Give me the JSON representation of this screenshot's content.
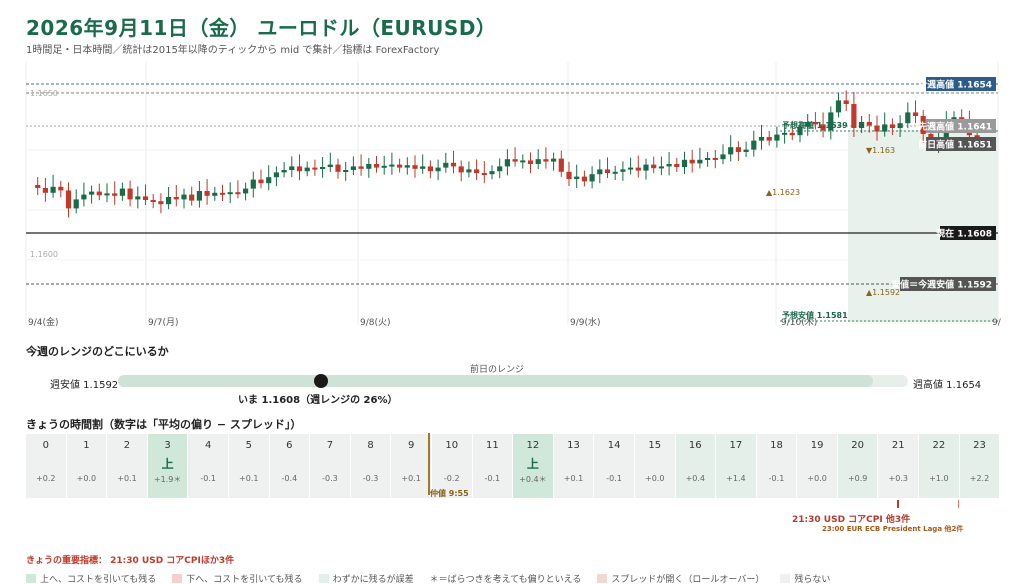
{
  "header": {
    "title": "2026年9月11日（金） ユーロドル（EURUSD）",
    "subtitle": "1時間足・日本時間／統計は2015年以降のティックから mid で集計／指標は ForexFactory"
  },
  "chart": {
    "y_tick_left_top": "1.1650",
    "y_tick_left_bottom": "1.1600",
    "day_labels": [
      "9/4(金)",
      "9/7(月)",
      "9/8(火)",
      "9/9(水)",
      "9/10(木)",
      "9/"
    ],
    "levels": {
      "week_high": "今週高値 1.1654",
      "prev_week_high": "先週高値 1.1641",
      "prev_day_high": "前日高値 1.1651",
      "current": "現在 1.1608",
      "week_low": "安値＝今週安値 1.1592",
      "forecast_high": "予想高値 1.1639",
      "forecast_low": "予想安値 1.1581"
    },
    "marks": {
      "up_1623": "▲1.1623",
      "down_1631": "▼1.163",
      "up_1592": "▲1.1592"
    },
    "colors": {
      "up": "#1a6b4a",
      "down": "#c0392b",
      "shade": "#e6f0e9"
    }
  },
  "range": {
    "title": "今週のレンジのどこにいるか",
    "prev_day_label": "前日のレンジ",
    "low_label": "週安値 1.1592",
    "high_label": "週高値 1.1654",
    "now_label": "いま 1.1608（週レンジの 26%）",
    "position_fraction": 0.26
  },
  "hours": {
    "title": "きょうの時間割（数字は「平均の偏り − スプレッド」）",
    "cells": [
      {
        "h": "0",
        "v": "+0.2",
        "a": "",
        "c": "c-gray"
      },
      {
        "h": "1",
        "v": "+0.0",
        "a": "",
        "c": "c-gray"
      },
      {
        "h": "2",
        "v": "+0.1",
        "a": "",
        "c": "c-gray"
      },
      {
        "h": "3",
        "v": "+1.9＊",
        "a": "上",
        "c": "c-green"
      },
      {
        "h": "4",
        "v": "-0.1",
        "a": "",
        "c": "c-gray"
      },
      {
        "h": "5",
        "v": "+0.1",
        "a": "",
        "c": "c-gray"
      },
      {
        "h": "6",
        "v": "-0.4",
        "a": "",
        "c": "c-gray"
      },
      {
        "h": "7",
        "v": "-0.3",
        "a": "",
        "c": "c-gray"
      },
      {
        "h": "8",
        "v": "-0.3",
        "a": "",
        "c": "c-gray"
      },
      {
        "h": "9",
        "v": "+0.1",
        "a": "",
        "c": "c-gray"
      },
      {
        "h": "10",
        "v": "-0.2",
        "a": "",
        "c": "c-gray"
      },
      {
        "h": "11",
        "v": "-0.1",
        "a": "",
        "c": "c-gray"
      },
      {
        "h": "12",
        "v": "+0.4＊",
        "a": "上",
        "c": "c-green"
      },
      {
        "h": "13",
        "v": "+0.1",
        "a": "",
        "c": "c-gray"
      },
      {
        "h": "14",
        "v": "-0.1",
        "a": "",
        "c": "c-gray"
      },
      {
        "h": "15",
        "v": "+0.0",
        "a": "",
        "c": "c-gray"
      },
      {
        "h": "16",
        "v": "+0.4",
        "a": "",
        "c": "c-light"
      },
      {
        "h": "17",
        "v": "+1.4",
        "a": "",
        "c": "c-light"
      },
      {
        "h": "18",
        "v": "-0.1",
        "a": "",
        "c": "c-gray"
      },
      {
        "h": "19",
        "v": "+0.0",
        "a": "",
        "c": "c-gray"
      },
      {
        "h": "20",
        "v": "+0.9",
        "a": "",
        "c": "c-light"
      },
      {
        "h": "21",
        "v": "+0.3",
        "a": "",
        "c": "c-gray"
      },
      {
        "h": "22",
        "v": "+1.0",
        "a": "",
        "c": "c-light"
      },
      {
        "h": "23",
        "v": "+2.2",
        "a": "",
        "c": "c-light"
      }
    ],
    "nakane_label": "仲値 9:55",
    "event1": "21:30 USD コアCPI 他3件",
    "event2": "23:00 EUR ECB President Laga 他2件"
  },
  "key_indicator": "きょうの重要指標： 21:30 USD コアCPIほか3件",
  "legend": [
    {
      "label": "上へ、コストを引いても残る",
      "color": "#cfe8da"
    },
    {
      "label": "下へ、コストを引いても残る",
      "color": "#f5d0cb"
    },
    {
      "label": "わずかに残るが誤差",
      "color": "#e3efe8"
    },
    {
      "label": "＊＝ばらつきを考えても偏りといえる",
      "color": ""
    },
    {
      "label": "スプレッドが開く（ロールオーバー）",
      "color": "#f3d8d2"
    },
    {
      "label": "残らない",
      "color": "#eef1f0"
    }
  ]
}
